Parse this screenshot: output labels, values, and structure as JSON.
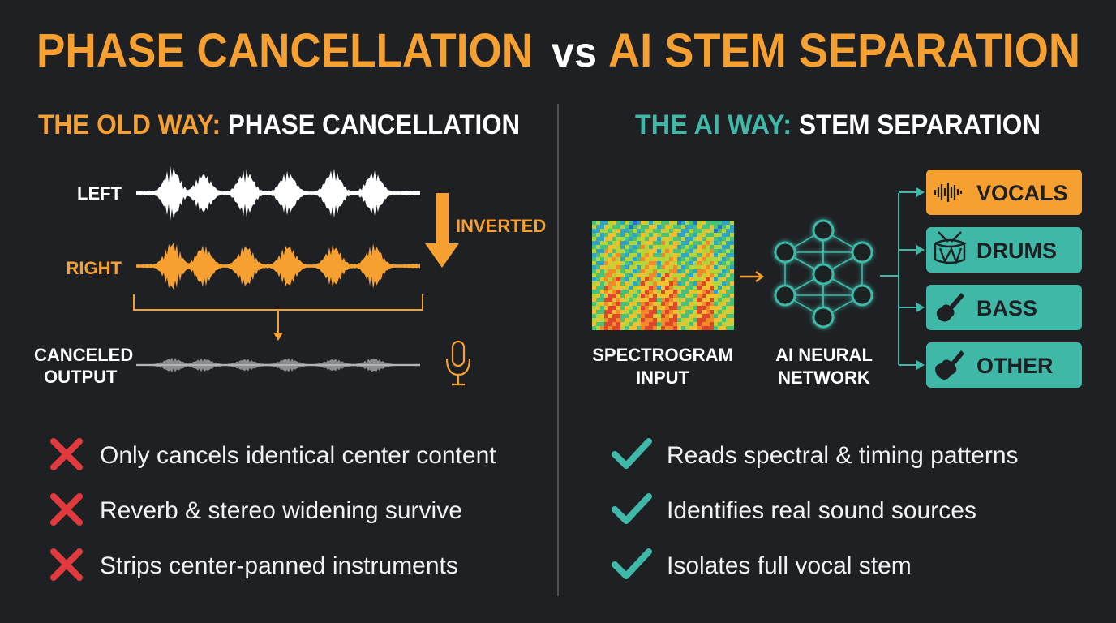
{
  "title": {
    "left": "PHASE CANCELLATION",
    "vs": "vs",
    "right": "AI STEM SEPARATION"
  },
  "old_way": {
    "heading_prefix": "THE OLD WAY:",
    "heading": "PHASE CANCELLATION",
    "left_label": "LEFT",
    "right_label": "RIGHT",
    "inverted_label": "INVERTED",
    "output_label": [
      "CANCELED",
      "OUTPUT"
    ],
    "bullets": [
      "Only cancels identical center content",
      "Reverb & stereo widening survive",
      "Strips center-panned instruments"
    ]
  },
  "ai_way": {
    "heading_prefix": "THE AI WAY:",
    "heading": "STEM SEPARATION",
    "input_label": [
      "SPECTROGRAM",
      "INPUT"
    ],
    "network_label": [
      "AI NEURAL",
      "NETWORK"
    ],
    "stems": [
      "VOCALS",
      "DRUMS",
      "BASS",
      "OTHER"
    ],
    "bullets": [
      "Reads spectral & timing patterns",
      "Identifies real sound sources",
      "Isolates full vocal stem"
    ]
  }
}
